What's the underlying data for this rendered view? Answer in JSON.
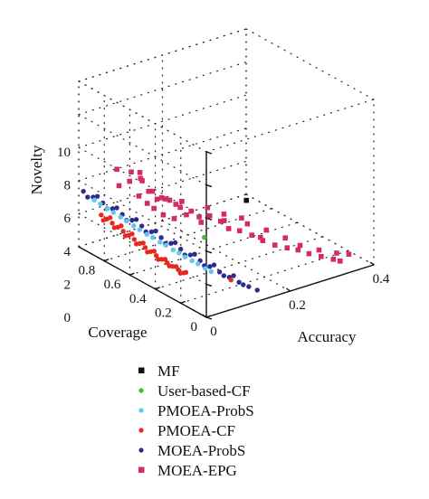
{
  "chart_data": {
    "type": "scatter3d",
    "title": "",
    "xlabel": "Accuracy",
    "ylabel": "Coverage",
    "zlabel": "Novelty",
    "xlim": [
      0,
      0.4
    ],
    "ylim": [
      0,
      1
    ],
    "zlim": [
      0,
      10
    ],
    "x_ticks": [
      "0",
      "0.2",
      "0.4"
    ],
    "y_ticks": [
      "0",
      "0.2",
      "0.4",
      "0.6",
      "0.8"
    ],
    "z_ticks": [
      "0",
      "2",
      "4",
      "6",
      "8",
      "10"
    ],
    "grid": true,
    "legend_position": "bottom",
    "series": [
      {
        "name": "MF",
        "color": "#111111",
        "marker": "square",
        "points": [
          [
            0.37,
            0.9,
            0.3
          ]
        ]
      },
      {
        "name": "User-based-CF",
        "color": "#44bb33",
        "marker": "dot",
        "points": [
          [
            0.19,
            0.64,
            0.6
          ]
        ]
      },
      {
        "name": "PMOEA-ProbS",
        "color": "#5cc8f0",
        "marker": "dot",
        "points": [
          [
            0.016,
            0.93,
            3.0
          ],
          [
            0.026,
            0.86,
            2.7
          ],
          [
            0.036,
            0.79,
            2.4
          ],
          [
            0.046,
            0.72,
            2.1
          ],
          [
            0.056,
            0.65,
            1.8
          ],
          [
            0.066,
            0.58,
            1.55
          ],
          [
            0.076,
            0.51,
            1.3
          ],
          [
            0.086,
            0.45,
            1.05
          ],
          [
            0.096,
            0.38,
            0.85
          ],
          [
            0.106,
            0.31,
            0.6
          ],
          [
            0.021,
            0.9,
            2.85
          ],
          [
            0.041,
            0.76,
            2.25
          ],
          [
            0.061,
            0.62,
            1.7
          ],
          [
            0.081,
            0.48,
            1.2
          ],
          [
            0.101,
            0.34,
            0.7
          ],
          [
            0.031,
            0.83,
            2.55
          ],
          [
            0.051,
            0.69,
            1.95
          ],
          [
            0.071,
            0.55,
            1.45
          ],
          [
            0.091,
            0.41,
            0.95
          ]
        ]
      },
      {
        "name": "PMOEA-CF",
        "color": "#e8281e",
        "marker": "dot",
        "points": [
          [
            0.008,
            0.85,
            2.5
          ],
          [
            0.012,
            0.82,
            2.35
          ],
          [
            0.016,
            0.79,
            2.2
          ],
          [
            0.02,
            0.76,
            2.05
          ],
          [
            0.024,
            0.73,
            1.9
          ],
          [
            0.028,
            0.7,
            1.75
          ],
          [
            0.032,
            0.67,
            1.6
          ],
          [
            0.036,
            0.64,
            1.45
          ],
          [
            0.04,
            0.61,
            1.3
          ],
          [
            0.044,
            0.58,
            1.15
          ],
          [
            0.048,
            0.55,
            1.0
          ],
          [
            0.052,
            0.52,
            0.88
          ],
          [
            0.056,
            0.49,
            0.76
          ],
          [
            0.06,
            0.46,
            0.64
          ],
          [
            0.064,
            0.43,
            0.54
          ],
          [
            0.068,
            0.4,
            0.44
          ],
          [
            0.01,
            0.84,
            2.2
          ],
          [
            0.018,
            0.78,
            1.95
          ],
          [
            0.026,
            0.72,
            1.65
          ],
          [
            0.034,
            0.66,
            1.35
          ],
          [
            0.042,
            0.6,
            1.05
          ],
          [
            0.05,
            0.54,
            0.8
          ],
          [
            0.058,
            0.48,
            0.6
          ],
          [
            0.014,
            0.8,
            2.5
          ],
          [
            0.022,
            0.74,
            2.2
          ],
          [
            0.03,
            0.68,
            1.9
          ],
          [
            0.038,
            0.62,
            1.55
          ],
          [
            0.046,
            0.56,
            1.25
          ],
          [
            0.054,
            0.5,
            0.95
          ],
          [
            0.062,
            0.44,
            0.7
          ],
          [
            0.066,
            0.42,
            0.35
          ],
          [
            0.07,
            0.39,
            0.5
          ],
          [
            0.135,
            0.25,
            0.12
          ]
        ]
      },
      {
        "name": "MOEA-ProbS",
        "color": "#2c2c8c",
        "marker": "dot",
        "points": [
          [
            0.005,
            0.98,
            3.4
          ],
          [
            0.013,
            0.93,
            3.2
          ],
          [
            0.021,
            0.88,
            3.0
          ],
          [
            0.029,
            0.83,
            2.8
          ],
          [
            0.037,
            0.78,
            2.6
          ],
          [
            0.045,
            0.73,
            2.4
          ],
          [
            0.053,
            0.68,
            2.2
          ],
          [
            0.061,
            0.63,
            2.0
          ],
          [
            0.069,
            0.58,
            1.8
          ],
          [
            0.077,
            0.53,
            1.6
          ],
          [
            0.085,
            0.48,
            1.4
          ],
          [
            0.093,
            0.43,
            1.2
          ],
          [
            0.101,
            0.38,
            1.0
          ],
          [
            0.109,
            0.33,
            0.8
          ],
          [
            0.117,
            0.28,
            0.62
          ],
          [
            0.125,
            0.23,
            0.45
          ],
          [
            0.133,
            0.18,
            0.3
          ],
          [
            0.141,
            0.13,
            0.18
          ],
          [
            0.149,
            0.09,
            0.08
          ],
          [
            0.009,
            0.96,
            3.1
          ],
          [
            0.025,
            0.86,
            2.7
          ],
          [
            0.041,
            0.76,
            2.3
          ],
          [
            0.057,
            0.66,
            1.9
          ],
          [
            0.073,
            0.56,
            1.5
          ],
          [
            0.089,
            0.46,
            1.1
          ],
          [
            0.105,
            0.36,
            0.75
          ],
          [
            0.121,
            0.26,
            0.45
          ],
          [
            0.137,
            0.16,
            0.2
          ],
          [
            0.017,
            0.91,
            3.3
          ],
          [
            0.033,
            0.81,
            2.9
          ],
          [
            0.049,
            0.71,
            2.5
          ],
          [
            0.065,
            0.61,
            2.1
          ],
          [
            0.081,
            0.51,
            1.7
          ],
          [
            0.097,
            0.41,
            1.3
          ],
          [
            0.113,
            0.31,
            0.95
          ],
          [
            0.129,
            0.21,
            0.6
          ]
        ]
      },
      {
        "name": "MOEA-EPG",
        "color": "#d42a6a",
        "marker": "square",
        "points": [
          [
            0.03,
            0.7,
            5.0
          ],
          [
            0.04,
            0.72,
            5.4
          ],
          [
            0.05,
            0.68,
            5.1
          ],
          [
            0.045,
            0.6,
            4.7
          ],
          [
            0.06,
            0.62,
            4.5
          ],
          [
            0.07,
            0.58,
            4.2
          ],
          [
            0.08,
            0.55,
            4.1
          ],
          [
            0.09,
            0.5,
            3.8
          ],
          [
            0.1,
            0.52,
            4.0
          ],
          [
            0.11,
            0.48,
            3.5
          ],
          [
            0.12,
            0.45,
            3.2
          ],
          [
            0.13,
            0.4,
            3.4
          ],
          [
            0.15,
            0.38,
            3.0
          ],
          [
            0.16,
            0.35,
            2.6
          ],
          [
            0.18,
            0.33,
            2.4
          ],
          [
            0.2,
            0.3,
            2.1
          ],
          [
            0.22,
            0.28,
            1.7
          ],
          [
            0.24,
            0.25,
            1.4
          ],
          [
            0.26,
            0.22,
            1.2
          ],
          [
            0.28,
            0.2,
            1.0
          ],
          [
            0.3,
            0.18,
            0.7
          ],
          [
            0.32,
            0.15,
            0.5
          ],
          [
            0.34,
            0.12,
            0.3
          ],
          [
            0.35,
            0.1,
            0.2
          ],
          [
            0.06,
            0.66,
            3.6
          ],
          [
            0.07,
            0.64,
            3.3
          ],
          [
            0.08,
            0.6,
            3.0
          ],
          [
            0.1,
            0.58,
            2.7
          ],
          [
            0.12,
            0.55,
            2.9
          ],
          [
            0.14,
            0.5,
            2.5
          ],
          [
            0.05,
            0.55,
            4.4
          ],
          [
            0.09,
            0.62,
            3.8
          ],
          [
            0.11,
            0.6,
            3.4
          ],
          [
            0.06,
            0.7,
            4.8
          ],
          [
            0.04,
            0.66,
            4.2
          ],
          [
            0.18,
            0.45,
            2.5
          ],
          [
            0.22,
            0.4,
            2.2
          ],
          [
            0.25,
            0.35,
            1.8
          ],
          [
            0.28,
            0.3,
            1.3
          ],
          [
            0.2,
            0.38,
            2.8
          ],
          [
            0.17,
            0.42,
            3.1
          ],
          [
            0.14,
            0.45,
            3.6
          ],
          [
            0.23,
            0.33,
            1.6
          ],
          [
            0.3,
            0.25,
            0.9
          ],
          [
            0.33,
            0.2,
            0.6
          ],
          [
            0.36,
            0.16,
            0.35
          ],
          [
            0.38,
            0.13,
            0.25
          ],
          [
            0.02,
            0.75,
            4.6
          ],
          [
            0.03,
            0.8,
            5.3
          ],
          [
            0.07,
            0.75,
            5.0
          ]
        ]
      }
    ]
  }
}
